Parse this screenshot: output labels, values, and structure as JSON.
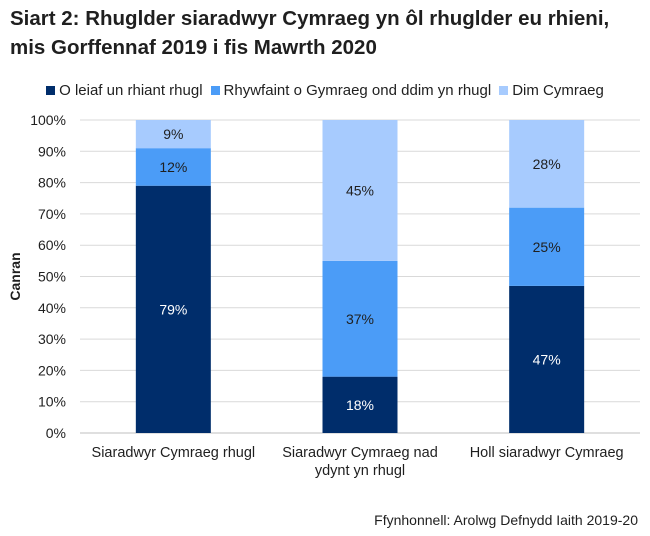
{
  "title": "Siart 2: Rhuglder siaradwyr Cymraeg yn ôl rhuglder eu rhieni, mis Gorffennaf 2019 i fis Mawrth 2020",
  "source": "Ffynhonnell: Arolwg Defnydd Iaith 2019-20",
  "chart_data": {
    "type": "bar",
    "stacked": true,
    "title": "Siart 2: Rhuglder siaradwyr Cymraeg yn ôl rhuglder eu rhieni, mis Gorffennaf 2019 i fis Mawrth 2020",
    "ylabel": "Canran",
    "xlabel": "",
    "ylim": [
      0,
      100
    ],
    "yticks": [
      "0%",
      "10%",
      "20%",
      "30%",
      "40%",
      "50%",
      "60%",
      "70%",
      "80%",
      "90%",
      "100%"
    ],
    "grid": true,
    "legend": "top",
    "categories": [
      [
        "Siaradwyr Cymraeg rhugl"
      ],
      [
        "Siaradwyr Cymraeg nad",
        "ydynt yn rhugl"
      ],
      [
        "Holl siaradwyr Cymraeg"
      ]
    ],
    "series": [
      {
        "name": "O leiaf un rhiant rhugl",
        "color": "#002d6b",
        "label_color": "#ffffff",
        "values": [
          79,
          18,
          47
        ]
      },
      {
        "name": "Rhywfaint o Gymraeg ond ddim yn rhugl",
        "color": "#4b9cf7",
        "label_color": "#1f1f1f",
        "values": [
          12,
          37,
          25
        ]
      },
      {
        "name": "Dim Cymraeg",
        "color": "#a7cbfe",
        "label_color": "#1f1f1f",
        "values": [
          9,
          45,
          28
        ]
      }
    ],
    "data_labels": [
      [
        "79%",
        "18%",
        "47%"
      ],
      [
        "12%",
        "37%",
        "25%"
      ],
      [
        "9%",
        "45%",
        "28%"
      ]
    ]
  }
}
